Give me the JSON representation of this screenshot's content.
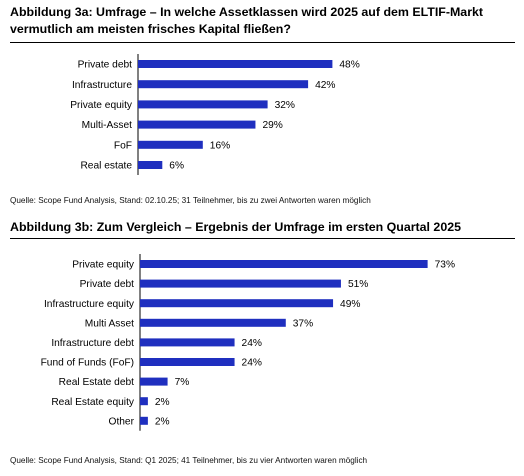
{
  "figure_a": {
    "title": "Abbildung 3a: Umfrage – In welche Assetklassen wird 2025 auf dem ELTIF-Markt vermutlich am meisten frisches Kapital fließen?",
    "source": "Quelle: Scope Fund Analysis, Stand: 02.10.25; 31 Teilnehmer, bis zu zwei Antworten waren möglich"
  },
  "figure_b": {
    "title": "Abbildung 3b: Zum Vergleich – Ergebnis der Umfrage im ersten Quartal 2025",
    "source": "Quelle: Scope Fund Analysis, Stand: Q1 2025; 41 Teilnehmer, bis zu vier Antworten waren möglich"
  },
  "colors": {
    "bar": "#1f2fbf",
    "axis": "#000000"
  },
  "chart_data": [
    {
      "type": "bar",
      "orientation": "horizontal",
      "categories": [
        "Private debt",
        "Infrastructure",
        "Private equity",
        "Multi-Asset",
        "FoF",
        "Real estate"
      ],
      "values": [
        48,
        42,
        32,
        29,
        16,
        6
      ],
      "value_labels": [
        "48%",
        "42%",
        "32%",
        "29%",
        "16%",
        "6%"
      ],
      "xlim": [
        0,
        100
      ]
    },
    {
      "type": "bar",
      "orientation": "horizontal",
      "categories": [
        "Private equity",
        "Private debt",
        "Infrastructure equity",
        "Multi Asset",
        "Infrastructure debt",
        "Fund of Funds (FoF)",
        "Real Estate debt",
        "Real Estate equity",
        "Other"
      ],
      "values": [
        73,
        51,
        49,
        37,
        24,
        24,
        7,
        2,
        2
      ],
      "value_labels": [
        "73%",
        "51%",
        "49%",
        "37%",
        "24%",
        "24%",
        "7%",
        "2%",
        "2%"
      ],
      "xlim": [
        0,
        100
      ]
    }
  ]
}
